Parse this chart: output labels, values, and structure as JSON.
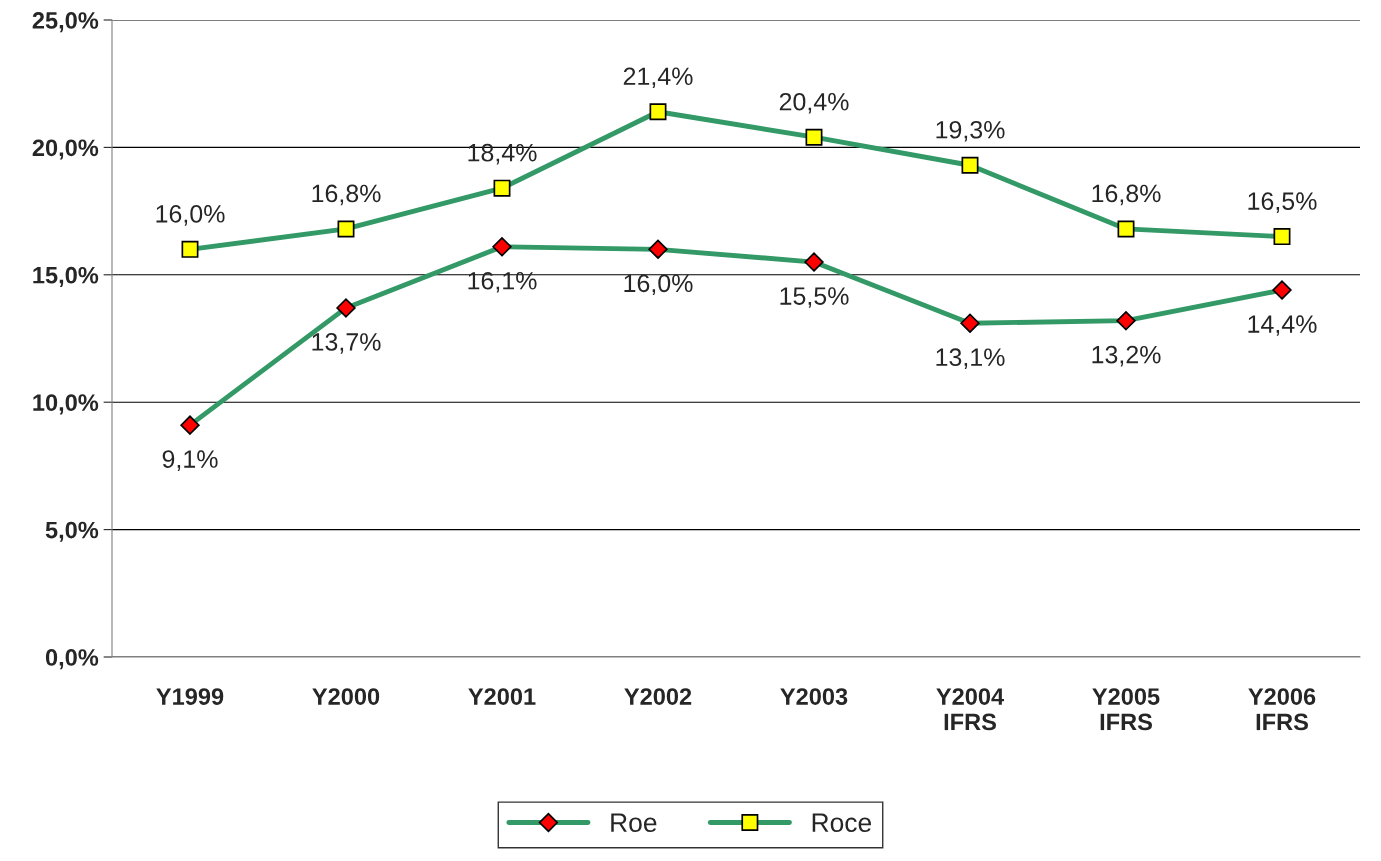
{
  "chart_data": {
    "type": "line",
    "categories": [
      "Y1999",
      "Y2000",
      "Y2001",
      "Y2002",
      "Y2003",
      "Y2004\nIFRS",
      "Y2005\nIFRS",
      "Y2006\nIFRS"
    ],
    "series": [
      {
        "name": "Roe",
        "color": "#339966",
        "marker": "diamond",
        "colors": [
          "#ff0000",
          "#ff0000",
          "#ff0000",
          "#ff0000",
          "#ff0000",
          "#ff0000",
          "#ff0000",
          "#ff0000"
        ],
        "values": [
          9.1,
          13.7,
          16.1,
          16.0,
          15.5,
          13.1,
          13.2,
          14.4
        ],
        "value_labels": [
          "9,1%",
          "13,7%",
          "16,1%",
          "16,0%",
          "15,5%",
          "13,1%",
          "13,2%",
          "14,4%"
        ]
      },
      {
        "name": "Roce",
        "color": "#339966",
        "marker": "square",
        "colors": [
          "#ffff00",
          "#ffff00",
          "#ffff00",
          "#ffff00",
          "#ffff00",
          "#ffff00",
          "#ffff00",
          "#ffff00"
        ],
        "values": [
          16.0,
          16.8,
          18.4,
          21.4,
          20.4,
          19.3,
          16.8,
          16.5
        ],
        "value_labels": [
          "16,0%",
          "16,8%",
          "18,4%",
          "21,4%",
          "20,4%",
          "19,3%",
          "16,8%",
          "16,5%"
        ]
      }
    ],
    "ylim": [
      0,
      25
    ],
    "yticks": [
      {
        "value": 0,
        "label": "0,0%"
      },
      {
        "value": 5,
        "label": "5,0%"
      },
      {
        "value": 10,
        "label": "10,0%"
      },
      {
        "value": 15,
        "label": "15,0%"
      },
      {
        "value": 20,
        "label": "20,0%"
      },
      {
        "value": 25,
        "label": "25,0%"
      }
    ],
    "grid": "y",
    "legend": "bottom",
    "line_style": "solid"
  }
}
